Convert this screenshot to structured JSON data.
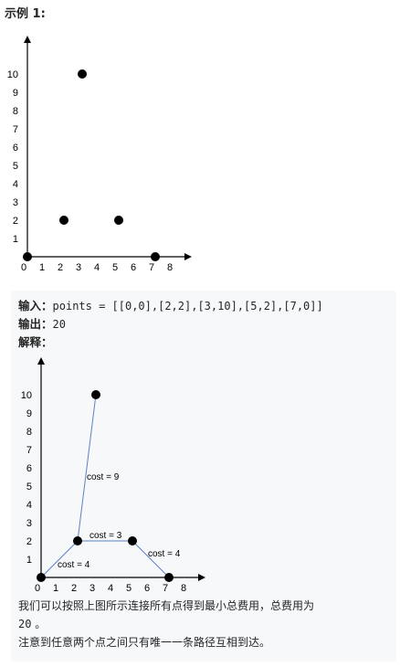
{
  "example": {
    "title": "示例 1:"
  },
  "chart_data": [
    {
      "type": "scatter",
      "title": "",
      "xlabel": "",
      "ylabel": "",
      "xlim": [
        0,
        8
      ],
      "ylim": [
        0,
        10
      ],
      "xticks": [
        "0",
        "1",
        "2",
        "3",
        "4",
        "5",
        "6",
        "7",
        "8"
      ],
      "yticks": [
        "1",
        "2",
        "3",
        "4",
        "5",
        "6",
        "7",
        "8",
        "9",
        "10"
      ],
      "points": [
        {
          "x": 0,
          "y": 0
        },
        {
          "x": 2,
          "y": 2
        },
        {
          "x": 3,
          "y": 10
        },
        {
          "x": 5,
          "y": 2
        },
        {
          "x": 7,
          "y": 0
        }
      ]
    },
    {
      "type": "scatter",
      "title": "",
      "xlabel": "",
      "ylabel": "",
      "xlim": [
        0,
        8
      ],
      "ylim": [
        0,
        10
      ],
      "xticks": [
        "0",
        "1",
        "2",
        "3",
        "4",
        "5",
        "6",
        "7",
        "8"
      ],
      "yticks": [
        "1",
        "2",
        "3",
        "4",
        "5",
        "6",
        "7",
        "8",
        "9",
        "10"
      ],
      "points": [
        {
          "x": 0,
          "y": 0
        },
        {
          "x": 2,
          "y": 2
        },
        {
          "x": 3,
          "y": 10
        },
        {
          "x": 5,
          "y": 2
        },
        {
          "x": 7,
          "y": 0
        }
      ],
      "edges": [
        {
          "from": [
            0,
            0
          ],
          "to": [
            2,
            2
          ],
          "label": "cost = 4"
        },
        {
          "from": [
            2,
            2
          ],
          "to": [
            5,
            2
          ],
          "label": "cost = 3"
        },
        {
          "from": [
            2,
            2
          ],
          "to": [
            3,
            10
          ],
          "label": "cost = 9"
        },
        {
          "from": [
            5,
            2
          ],
          "to": [
            7,
            0
          ],
          "label": "cost = 4"
        }
      ],
      "edge_color": "#5b7fc7"
    }
  ],
  "io": {
    "input_label": "输入：",
    "input_value": "points = [[0,0],[2,2],[3,10],[5,2],[7,0]]",
    "output_label": "输出：",
    "output_value": "20",
    "explain_label": "解释："
  },
  "explanation": {
    "line1": "我们可以按照上图所示连接所有点得到最小总费用，总费用为",
    "line2_value": "20",
    "line2_suffix": " 。",
    "line3": "注意到任意两个点之间只有唯一一条路径互相到达。"
  }
}
